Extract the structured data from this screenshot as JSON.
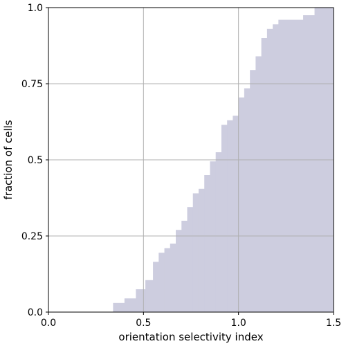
{
  "chart_data": {
    "type": "area",
    "subtype": "cumulative-histogram",
    "title": "",
    "xlabel": "orientation selectivity index",
    "ylabel": "fraction of cells",
    "xlim": [
      0.0,
      1.5
    ],
    "ylim": [
      0.0,
      1.0
    ],
    "xticks": [
      0.0,
      0.5,
      1.0,
      1.5
    ],
    "xtick_labels": [
      "0.0",
      "0.5",
      "1.0",
      "1.5"
    ],
    "yticks": [
      0.0,
      0.25,
      0.5,
      0.75,
      1.0
    ],
    "ytick_labels": [
      "0.0",
      "0.25",
      "0.5",
      "0.75",
      "1.0"
    ],
    "grid": true,
    "fill_color": "#cdcddf",
    "grid_color": "#b0b0b0",
    "bin_edges": [
      0.34,
      0.4,
      0.46,
      0.51,
      0.55,
      0.58,
      0.61,
      0.64,
      0.67,
      0.7,
      0.73,
      0.76,
      0.79,
      0.82,
      0.85,
      0.88,
      0.91,
      0.94,
      0.97,
      1.0,
      1.03,
      1.06,
      1.09,
      1.12,
      1.15,
      1.18,
      1.21,
      1.25,
      1.34,
      1.4,
      1.5
    ],
    "cumulative_fraction": [
      0.03,
      0.045,
      0.075,
      0.105,
      0.165,
      0.195,
      0.21,
      0.225,
      0.27,
      0.3,
      0.345,
      0.39,
      0.405,
      0.45,
      0.495,
      0.525,
      0.615,
      0.63,
      0.645,
      0.705,
      0.735,
      0.795,
      0.84,
      0.9,
      0.93,
      0.945,
      0.96,
      0.96,
      0.975,
      1.0
    ]
  }
}
